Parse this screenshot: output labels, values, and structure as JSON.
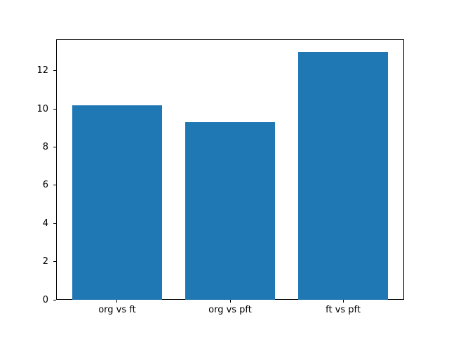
{
  "chart_data": {
    "type": "bar",
    "title": "",
    "xlabel": "",
    "ylabel": "",
    "categories": [
      "org vs ft",
      "org vs pft",
      "ft vs pft"
    ],
    "values": [
      10.2,
      9.3,
      13.0
    ],
    "bar_color": "#1f77b4",
    "yticks": [
      0,
      2,
      4,
      6,
      8,
      10,
      12
    ],
    "ylim": [
      0,
      13.65
    ],
    "xlim": [
      -0.54,
      2.54
    ],
    "bar_width": 0.8,
    "grid": false,
    "legend": null
  }
}
